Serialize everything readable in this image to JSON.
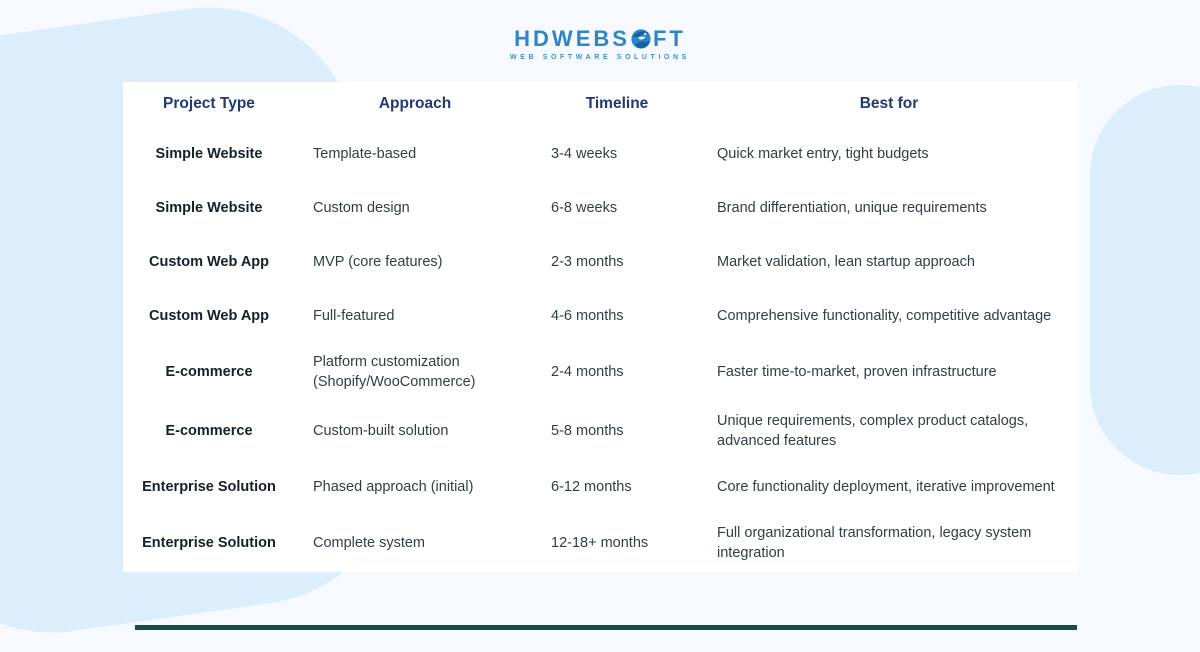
{
  "logo": {
    "text_left": "HDWEBS",
    "text_right": "FT",
    "tagline": "WEB SOFTWARE SOLUTIONS",
    "brand_color": "#2e86c9"
  },
  "table": {
    "headers": [
      "Project Type",
      "Approach",
      "Timeline",
      "Best for"
    ],
    "rows": [
      {
        "project_type": "Simple Website",
        "approach": "Template-based",
        "timeline": "3-4 weeks",
        "best_for": "Quick market entry, tight budgets"
      },
      {
        "project_type": "Simple Website",
        "approach": "Custom design",
        "timeline": "6-8 weeks",
        "best_for": "Brand differentiation, unique requirements"
      },
      {
        "project_type": "Custom Web App",
        "approach": "MVP (core features)",
        "timeline": "2-3 months",
        "best_for": "Market validation, lean startup approach"
      },
      {
        "project_type": "Custom Web App",
        "approach": "Full-featured",
        "timeline": "4-6 months",
        "best_for": "Comprehensive functionality, competitive advantage"
      },
      {
        "project_type": "E-commerce",
        "approach": "Platform customization (Shopify/WooCommerce)",
        "timeline": "2-4 months",
        "best_for": "Faster time-to-market, proven infrastructure"
      },
      {
        "project_type": "E-commerce",
        "approach": "Custom-built solution",
        "timeline": "5-8 months",
        "best_for": "Unique requirements, complex product catalogs, advanced features"
      },
      {
        "project_type": "Enterprise Solution",
        "approach": "Phased approach (initial)",
        "timeline": "6-12 months",
        "best_for": "Core functionality deployment, iterative improvement"
      },
      {
        "project_type": "Enterprise Solution",
        "approach": "Complete system",
        "timeline": "12-18+ months",
        "best_for": "Full organizational transformation, legacy system integration"
      }
    ]
  },
  "chart_data": {
    "type": "table",
    "title": "",
    "columns": [
      "Project Type",
      "Approach",
      "Timeline",
      "Best for"
    ],
    "cells": [
      [
        "Simple Website",
        "Template-based",
        "3-4 weeks",
        "Quick market entry, tight budgets"
      ],
      [
        "Simple Website",
        "Custom design",
        "6-8 weeks",
        "Brand differentiation, unique requirements"
      ],
      [
        "Custom Web App",
        "MVP (core features)",
        "2-3 months",
        "Market validation, lean startup approach"
      ],
      [
        "Custom Web App",
        "Full-featured",
        "4-6 months",
        "Comprehensive functionality, competitive advantage"
      ],
      [
        "E-commerce",
        "Platform customization (Shopify/WooCommerce)",
        "2-4 months",
        "Faster time-to-market, proven infrastructure"
      ],
      [
        "E-commerce",
        "Custom-built solution",
        "5-8 months",
        "Unique requirements, complex product catalogs, advanced features"
      ],
      [
        "Enterprise Solution",
        "Phased approach (initial)",
        "6-12 months",
        "Core functionality deployment, iterative improvement"
      ],
      [
        "Enterprise Solution",
        "Complete system",
        "12-18+ months",
        "Full organizational transformation, legacy system integration"
      ]
    ]
  },
  "colors": {
    "page_background": "#f6fafe",
    "blob": "#dceefb",
    "header_text": "#1e3a6e",
    "body_text": "#333d47",
    "mint_cell": "#e6f4f0",
    "bottom_bar": "#144f48",
    "logo_blue": "#2e86c9"
  }
}
